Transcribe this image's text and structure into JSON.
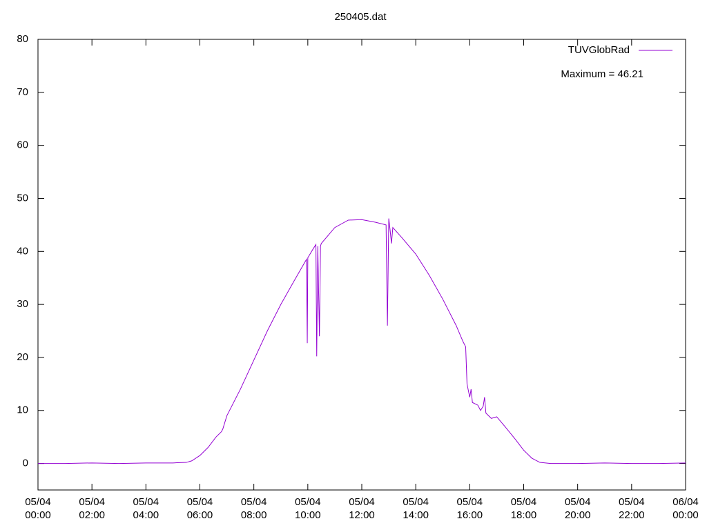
{
  "chart_data": {
    "type": "line",
    "title": "250405.dat",
    "annotation": "Maximum = 46.21",
    "legend": "top-right",
    "x": [
      0,
      1,
      2,
      3,
      4,
      5,
      5.5,
      5.7,
      6,
      6.3,
      6.6,
      6.8,
      6.85,
      7,
      7.5,
      8,
      8.5,
      9,
      9.5,
      9.95,
      9.98,
      10.0,
      10.2,
      10.3,
      10.33,
      10.37,
      10.43,
      10.47,
      10.5,
      11,
      11.5,
      12,
      12.5,
      12.9,
      12.95,
      13.0,
      13.05,
      13.1,
      13.15,
      13.5,
      14,
      14.5,
      15,
      15.5,
      15.75,
      15.85,
      15.9,
      16,
      16.05,
      16.1,
      16.3,
      16.4,
      16.5,
      16.55,
      16.6,
      16.8,
      17,
      17.3,
      17.7,
      18,
      18.3,
      18.6,
      19,
      20,
      21,
      22,
      23,
      24
    ],
    "series": [
      {
        "name": "TUVGlobRad",
        "color": "#9400d3",
        "values": [
          0,
          0,
          0.1,
          0,
          0.1,
          0.1,
          0.2,
          0.5,
          1.5,
          3,
          5,
          6,
          6.5,
          9,
          14,
          19.5,
          25,
          30,
          34.5,
          38.5,
          22.7,
          38.8,
          40.5,
          41.3,
          20.2,
          41,
          24,
          41,
          41.5,
          44.5,
          45.9,
          46,
          45.5,
          45,
          26,
          46.21,
          44,
          41.5,
          44.5,
          42.5,
          39.5,
          35.5,
          31,
          26,
          23,
          22,
          15,
          12.5,
          14,
          11.5,
          11,
          10,
          10.8,
          12.5,
          9.5,
          8.5,
          8.8,
          7,
          4.5,
          2.5,
          1,
          0.2,
          0,
          0,
          0.1,
          0,
          0,
          0.1
        ]
      }
    ],
    "xlim": [
      0,
      24
    ],
    "xticks": [
      {
        "value": 0,
        "label": [
          "05/04",
          "00:00"
        ]
      },
      {
        "value": 2,
        "label": [
          "05/04",
          "02:00"
        ]
      },
      {
        "value": 4,
        "label": [
          "05/04",
          "04:00"
        ]
      },
      {
        "value": 6,
        "label": [
          "05/04",
          "06:00"
        ]
      },
      {
        "value": 8,
        "label": [
          "05/04",
          "08:00"
        ]
      },
      {
        "value": 10,
        "label": [
          "05/04",
          "10:00"
        ]
      },
      {
        "value": 12,
        "label": [
          "05/04",
          "12:00"
        ]
      },
      {
        "value": 14,
        "label": [
          "05/04",
          "14:00"
        ]
      },
      {
        "value": 16,
        "label": [
          "05/04",
          "16:00"
        ]
      },
      {
        "value": 18,
        "label": [
          "05/04",
          "18:00"
        ]
      },
      {
        "value": 20,
        "label": [
          "05/04",
          "20:00"
        ]
      },
      {
        "value": 22,
        "label": [
          "05/04",
          "22:00"
        ]
      },
      {
        "value": 24,
        "label": [
          "06/04",
          "00:00"
        ]
      }
    ],
    "ylim": [
      -5,
      80
    ],
    "yticks": [
      0,
      10,
      20,
      30,
      40,
      50,
      60,
      70,
      80
    ]
  }
}
